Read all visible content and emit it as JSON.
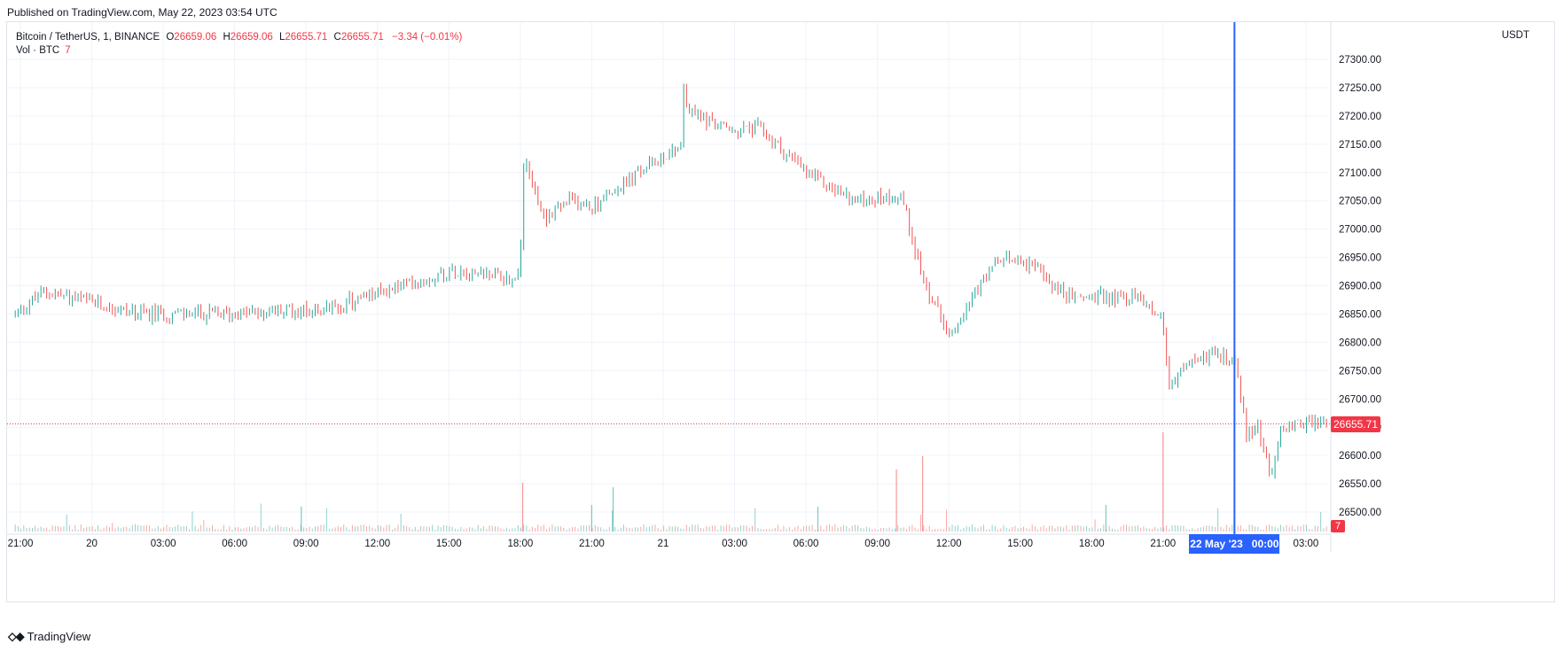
{
  "header": {
    "published": "Published on TradingView.com, May 22, 2023 03:54 UTC"
  },
  "legend": {
    "symbol": "Bitcoin / TetherUS, 1, BINANCE",
    "open_label": "O",
    "open": "26659.06",
    "high_label": "H",
    "high": "26659.06",
    "low_label": "L",
    "low": "26655.71",
    "close_label": "C",
    "close": "26655.71",
    "change": "−3.34 (−0.01%)",
    "volume_label": "Vol · BTC",
    "volume": "7"
  },
  "axis": {
    "currency": "USDT"
  },
  "badges": {
    "last_price": "26655.71",
    "last_volume": "7",
    "crosshair_date": "22 May '23",
    "crosshair_time": "00:00"
  },
  "footer": {
    "brand": "TradingView"
  },
  "colors": {
    "up": "#26a69a",
    "down": "#ef5350",
    "crosshair": "#2962ff",
    "price_line": "#f23645",
    "grid": "#f0f3fa"
  },
  "chart_data": {
    "type": "line",
    "title": "Bitcoin / TetherUS, 1, BINANCE",
    "ylabel": "USDT",
    "ylim": [
      26480,
      27320
    ],
    "yticks": [
      27300,
      27250,
      27200,
      27150,
      27100,
      27050,
      27000,
      26950,
      26900,
      26850,
      26800,
      26750,
      26700,
      26650,
      26600,
      26550,
      26500
    ],
    "xticks": [
      "21:00",
      "20",
      "03:00",
      "06:00",
      "09:00",
      "12:00",
      "15:00",
      "18:00",
      "21:00",
      "21",
      "03:00",
      "06:00",
      "09:00",
      "12:00",
      "15:00",
      "18:00",
      "21:00",
      "00:00",
      "03:00"
    ],
    "x_start": "May 19 20:47",
    "x_end": "May 22 03:54",
    "series": [
      {
        "x": [
          "May 19 20:47",
          "May 19 22:00",
          "May 20 02:00",
          "May 20 06:00",
          "May 20 10:00",
          "May 20 13:00",
          "May 20 15:30",
          "May 20 17:50",
          "May 20 18:00",
          "May 20 18:10",
          "May 20 19:00",
          "May 20 20:00",
          "May 20 21:00",
          "May 20 23:00",
          "May 21 00:45",
          "May 21 00:50",
          "May 21 01:00",
          "May 21 03:00",
          "May 21 04:00",
          "May 21 06:00",
          "May 21 08:00",
          "May 21 10:00",
          "May 21 11:00",
          "May 21 12:00",
          "May 21 14:00",
          "May 21 15:00",
          "May 21 17:00",
          "May 21 20:00",
          "May 21 21:00",
          "May 21 21:15",
          "May 21 22:00",
          "May 21 23:00",
          "May 22 00:00",
          "May 22 00:30",
          "May 22 01:00",
          "May 22 01:30",
          "May 22 02:00",
          "May 22 03:00",
          "May 22 03:54"
        ],
        "values": [
          26850,
          26890,
          26850,
          26850,
          26860,
          26900,
          26930,
          26910,
          26960,
          27120,
          27020,
          27050,
          27040,
          27100,
          27150,
          27260,
          27210,
          27170,
          27180,
          27100,
          27050,
          27060,
          26900,
          26820,
          26940,
          26950,
          26880,
          26880,
          26840,
          26720,
          26760,
          26780,
          26770,
          26640,
          26650,
          26560,
          26650,
          26660,
          26655.71
        ]
      }
    ],
    "last_price": 26655.71,
    "last_volume": 7
  }
}
